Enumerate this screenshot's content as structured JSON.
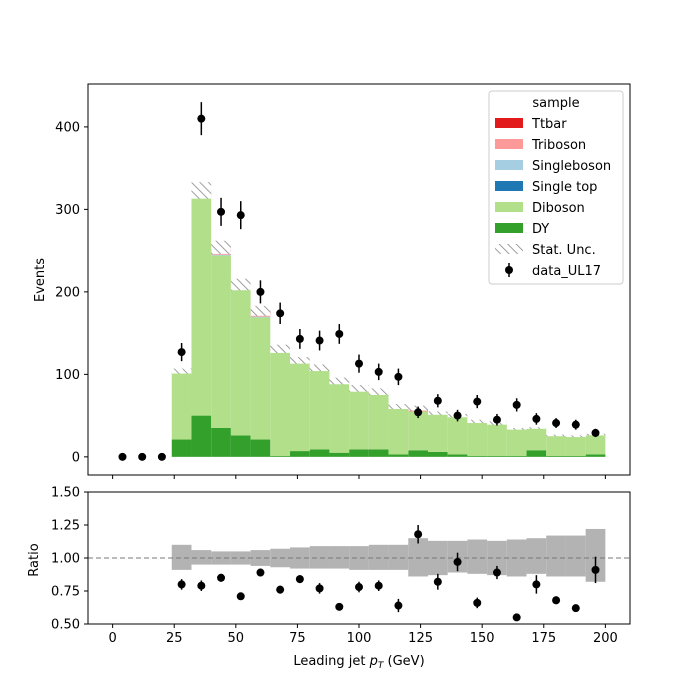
{
  "chart_data": [
    {
      "type": "bar",
      "stacked": true,
      "ylabel": "Events",
      "ylim": [
        -22,
        452
      ],
      "yticks": [
        0,
        100,
        200,
        300,
        400
      ],
      "xlim": [
        -10,
        210
      ],
      "bin_edges": [
        24,
        32,
        40,
        48,
        56,
        64,
        72,
        80,
        88,
        96,
        104,
        112,
        120,
        128,
        136,
        144,
        152,
        160,
        168,
        176,
        184,
        192,
        200
      ],
      "series": [
        {
          "name": "DY",
          "color": "#33a02c",
          "values": [
            21,
            50,
            35,
            26,
            21,
            1,
            7,
            9,
            5,
            9,
            9,
            3,
            8,
            6,
            3,
            1,
            1,
            1,
            8,
            1,
            1,
            3
          ]
        },
        {
          "name": "Diboson",
          "color": "#b2df8a",
          "values": [
            81,
            270,
            209,
            180,
            148,
            127,
            109,
            98,
            85,
            73,
            68,
            57,
            47,
            47,
            47,
            42,
            40,
            33,
            27,
            25,
            24,
            24
          ]
        },
        {
          "name": "Single top",
          "color": "#1f78b4",
          "values": [
            0,
            0,
            0,
            0,
            0,
            0,
            0,
            0,
            0,
            0,
            0,
            0,
            0,
            0,
            0,
            0,
            0,
            0,
            0,
            0,
            0,
            0
          ]
        },
        {
          "name": "Singleboson",
          "color": "#a6cee3",
          "values": [
            0,
            0,
            1,
            1,
            1,
            0,
            0,
            0,
            0,
            0,
            0,
            0,
            0,
            0,
            0,
            0,
            0,
            0,
            0,
            0,
            0,
            0
          ]
        },
        {
          "name": "Triboson",
          "color": "#fb9a99",
          "values": [
            2,
            3,
            3,
            2,
            2,
            2,
            1,
            1,
            1,
            1,
            1,
            1,
            1,
            0,
            0,
            0,
            0,
            0,
            0,
            0,
            0,
            0
          ]
        },
        {
          "name": "Ttbar",
          "color": "#e31a1c",
          "values": [
            0,
            0,
            6,
            0,
            5,
            1,
            0,
            0,
            1,
            0,
            1,
            0,
            3,
            0,
            0,
            0,
            0,
            0,
            0,
            0,
            0,
            0
          ]
        }
      ],
      "stat_unc_halfwidth": [
        3,
        10,
        8,
        7,
        6,
        5,
        4,
        4,
        4,
        4,
        4,
        3,
        3,
        2,
        2,
        2,
        2,
        1,
        1,
        1,
        1,
        1
      ],
      "data": {
        "name": "data_UL17",
        "x": [
          4,
          12,
          20,
          28,
          36,
          44,
          52,
          60,
          68,
          76,
          84,
          92,
          100,
          108,
          116,
          124,
          132,
          140,
          148,
          156,
          164,
          172,
          180,
          188,
          196
        ],
        "y": [
          0,
          0,
          0,
          127,
          410,
          297,
          293,
          200,
          174,
          143,
          141,
          149,
          113,
          103,
          97,
          54,
          68,
          50,
          67,
          45,
          63,
          46,
          41,
          39,
          29
        ],
        "yerr": [
          0,
          0,
          0,
          11,
          20,
          17,
          17,
          14,
          13,
          12,
          12,
          12,
          11,
          10,
          10,
          7,
          8,
          7,
          8,
          7,
          8,
          7,
          6,
          6,
          5
        ]
      },
      "legend": {
        "title": "sample",
        "placement": "top-right",
        "entries": [
          "Ttbar",
          "Triboson",
          "Singleboson",
          "Single top",
          "Diboson",
          "DY",
          "Stat. Unc.",
          "data_UL17"
        ]
      }
    },
    {
      "type": "scatter",
      "ylabel": "Ratio",
      "xlabel": "Leading jet  pT (GeV)",
      "ylim": [
        0.5,
        1.5
      ],
      "yticks": [
        "0.50",
        "0.75",
        "1.00",
        "1.25",
        "1.50"
      ],
      "xticks": [
        0,
        25,
        50,
        75,
        100,
        125,
        150,
        175,
        200
      ],
      "reference_line": 1.0,
      "unc_band": {
        "lo": [
          0.91,
          0.95,
          0.95,
          0.95,
          0.94,
          0.93,
          0.92,
          0.92,
          0.92,
          0.91,
          0.91,
          0.91,
          0.86,
          0.87,
          0.89,
          0.88,
          0.87,
          0.86,
          0.88,
          0.86,
          0.86,
          0.82
        ],
        "hi": [
          1.1,
          1.06,
          1.05,
          1.05,
          1.06,
          1.07,
          1.08,
          1.09,
          1.09,
          1.09,
          1.1,
          1.1,
          1.15,
          1.13,
          1.13,
          1.14,
          1.13,
          1.14,
          1.15,
          1.17,
          1.17,
          1.22
        ]
      },
      "points": {
        "x": [
          28,
          36,
          44,
          52,
          60,
          68,
          76,
          84,
          92,
          100,
          108,
          116,
          124,
          132,
          140,
          148,
          156,
          164,
          172,
          180,
          188,
          196
        ],
        "y": [
          0.8,
          0.79,
          0.85,
          0.71,
          0.89,
          0.76,
          0.84,
          0.77,
          0.63,
          0.78,
          0.79,
          0.64,
          1.18,
          0.82,
          0.97,
          0.66,
          0.89,
          0.55,
          0.8,
          0.68,
          0.62,
          0.91
        ],
        "err": [
          0.04,
          0.04,
          0.03,
          0.02,
          0.03,
          0.03,
          0.03,
          0.04,
          0.02,
          0.04,
          0.04,
          0.05,
          0.07,
          0.06,
          0.07,
          0.04,
          0.05,
          0.0,
          0.07,
          0.03,
          0.02,
          0.1
        ]
      }
    }
  ],
  "axis_labels": {
    "top_y": "Events",
    "bottom_y": "Ratio",
    "bottom_x_prefix": "Leading jet  ",
    "bottom_x_var": "p",
    "bottom_x_sub": "T",
    "bottom_x_suffix": " (GeV)"
  },
  "legend_labels": {
    "title": "sample",
    "ttbar": "Ttbar",
    "triboson": "Triboson",
    "singleboson": "Singleboson",
    "singletop": "Single top",
    "diboson": "Diboson",
    "dy": "DY",
    "statunc": "Stat. Unc.",
    "data": "data_UL17"
  },
  "colors": {
    "ttbar": "#e31a1c",
    "triboson": "#fb9a99",
    "singleboson": "#a6cee3",
    "singletop": "#1f78b4",
    "diboson": "#b2df8a",
    "dy": "#33a02c",
    "band": "#b3b3b3",
    "hatch": "#888888"
  }
}
